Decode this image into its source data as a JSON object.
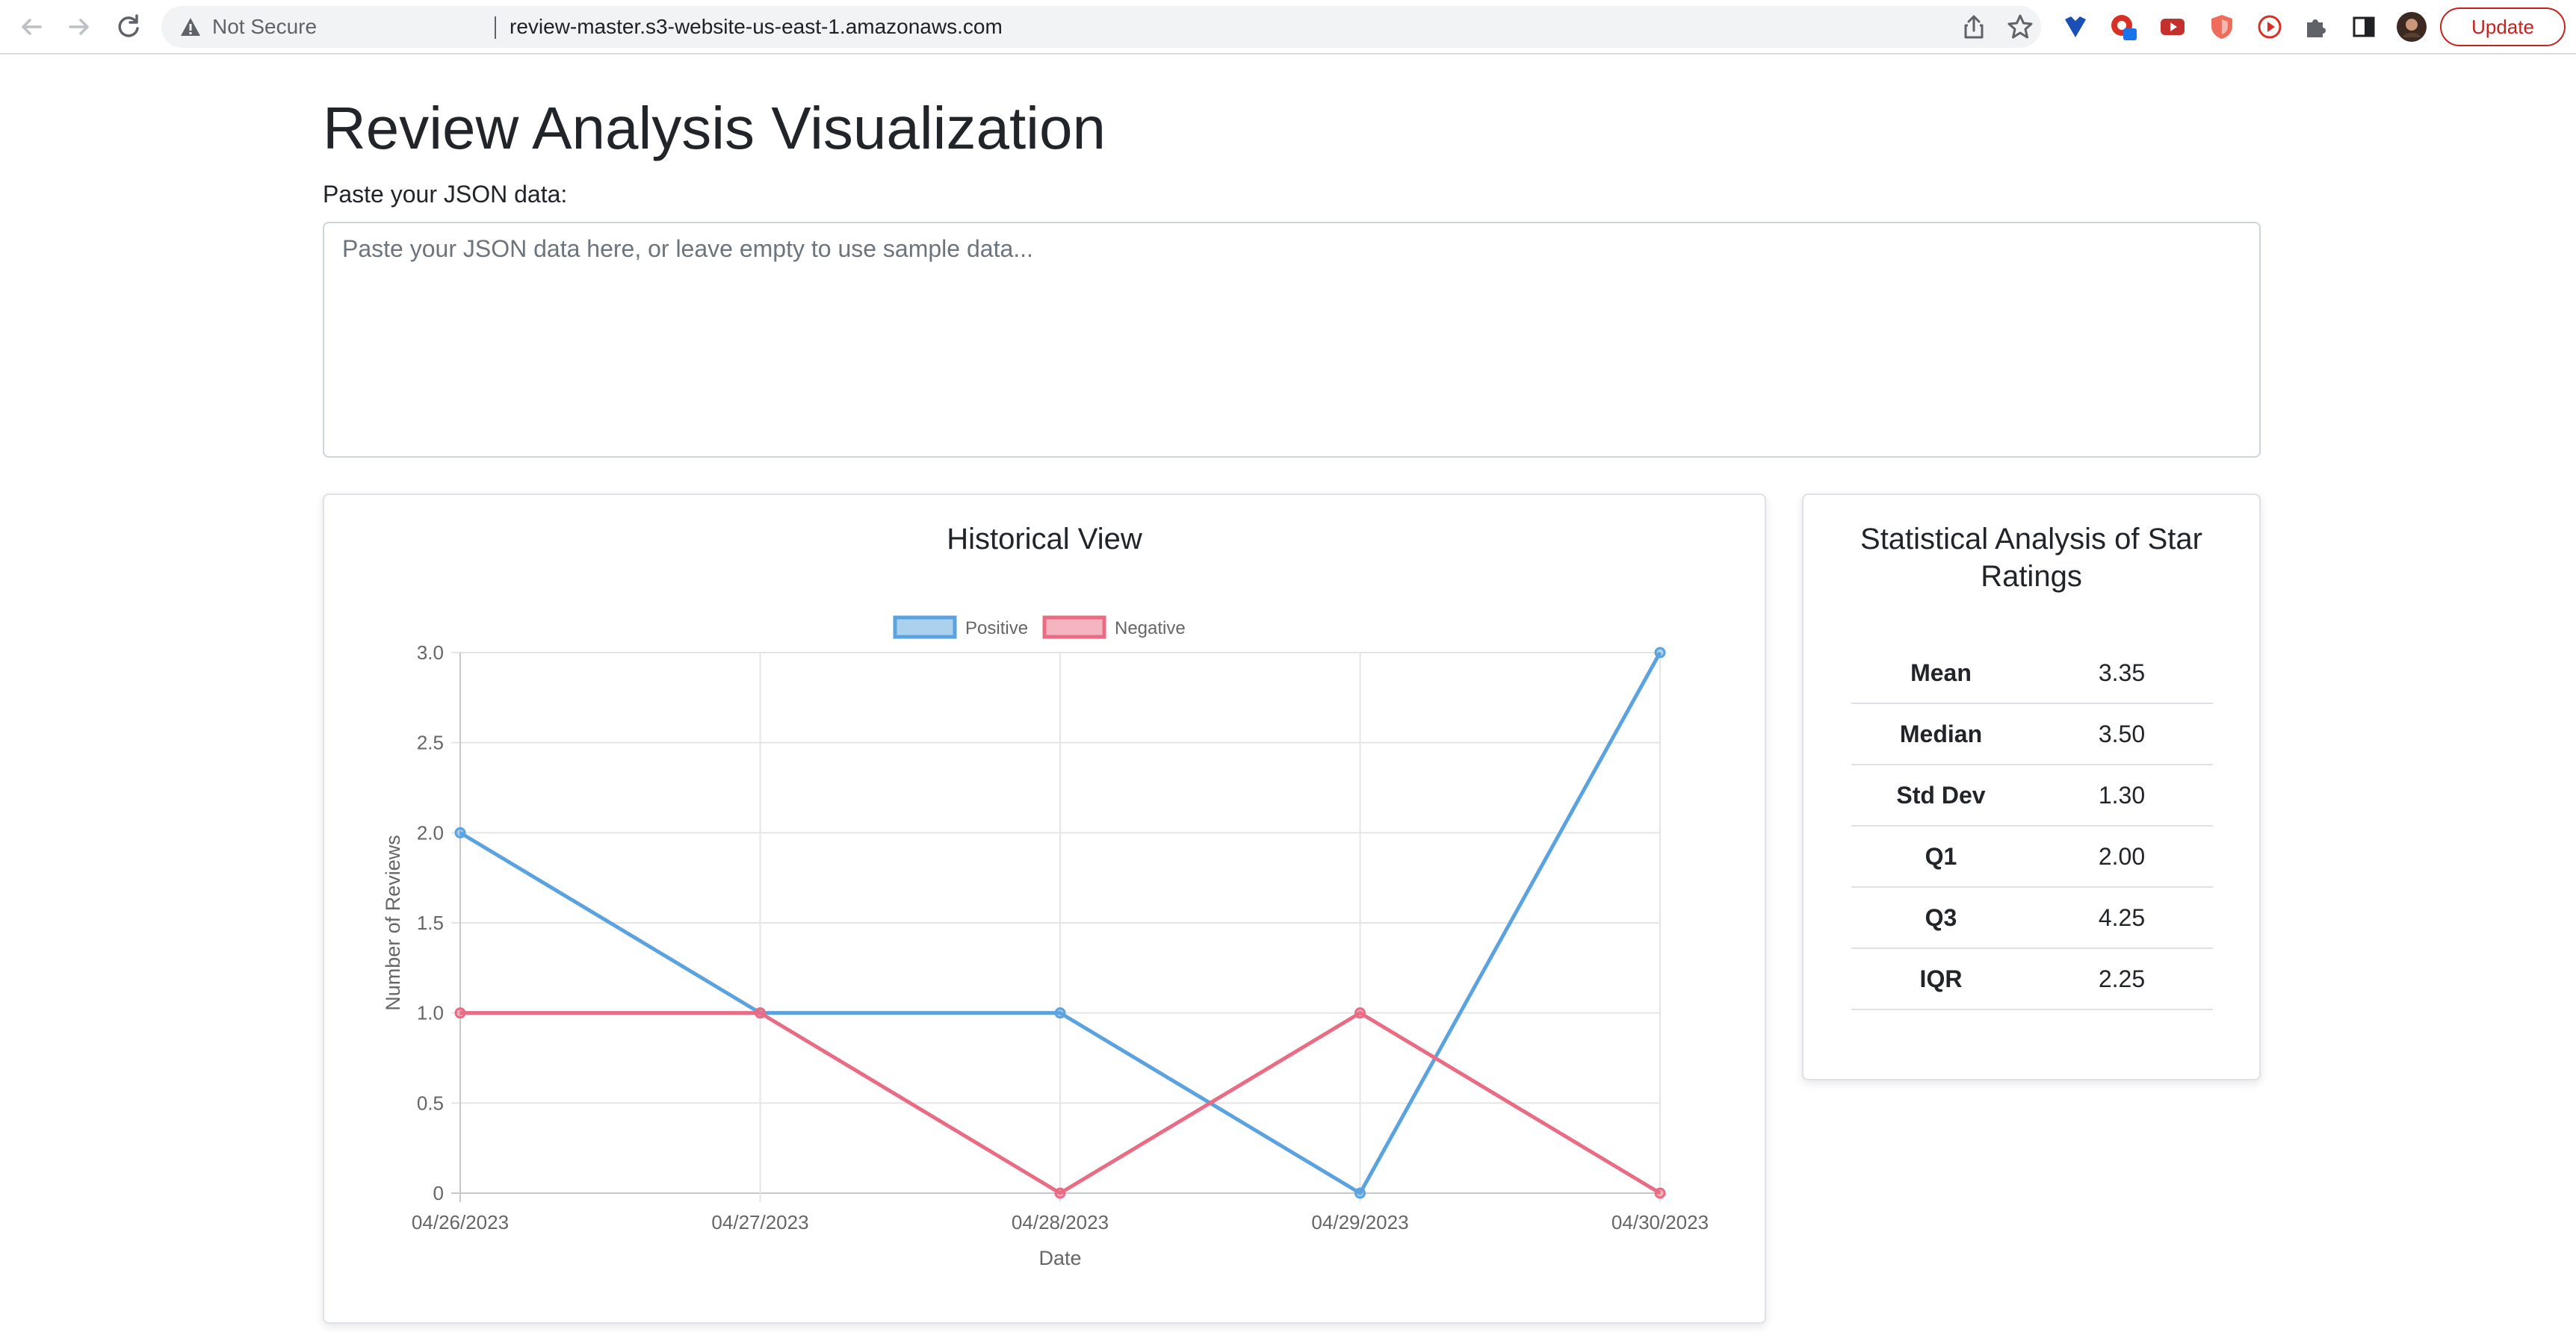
{
  "browser": {
    "security_label": "Not Secure",
    "url": "review-master.s3-website-us-east-1.amazonaws.com",
    "update_label": "Update",
    "icons": [
      "back-icon",
      "forward-icon",
      "reload-icon",
      "warning-icon",
      "share-icon",
      "star-icon",
      "puzzle-icon",
      "sidebar-icon"
    ]
  },
  "page": {
    "title": "Review Analysis Visualization",
    "json_label": "Paste your JSON data:",
    "json_placeholder": "Paste your JSON data here, or leave empty to use sample data..."
  },
  "historical": {
    "title": "Historical View"
  },
  "chart_data": {
    "type": "line",
    "x": [
      "04/26/2023",
      "04/27/2023",
      "04/28/2023",
      "04/29/2023",
      "04/30/2023"
    ],
    "series": [
      {
        "name": "Positive",
        "values": [
          2,
          1,
          1,
          0,
          3
        ],
        "color": "#5aa3e0"
      },
      {
        "name": "Negative",
        "values": [
          1,
          1,
          0,
          1,
          0
        ],
        "color": "#ea6b84"
      }
    ],
    "xlabel": "Date",
    "ylabel": "Number of Reviews",
    "ylim": [
      0,
      3
    ],
    "yticks": [
      "0",
      "0.5",
      "1.0",
      "1.5",
      "2.0",
      "2.5",
      "3.0"
    ],
    "grid": true,
    "legend": "top-center"
  },
  "stats": {
    "title": "Statistical Analysis of Star Ratings",
    "rows": [
      {
        "label": "Mean",
        "value": "3.35"
      },
      {
        "label": "Median",
        "value": "3.50"
      },
      {
        "label": "Std Dev",
        "value": "1.30"
      },
      {
        "label": "Q1",
        "value": "2.00"
      },
      {
        "label": "Q3",
        "value": "4.25"
      },
      {
        "label": "IQR",
        "value": "2.25"
      }
    ]
  }
}
